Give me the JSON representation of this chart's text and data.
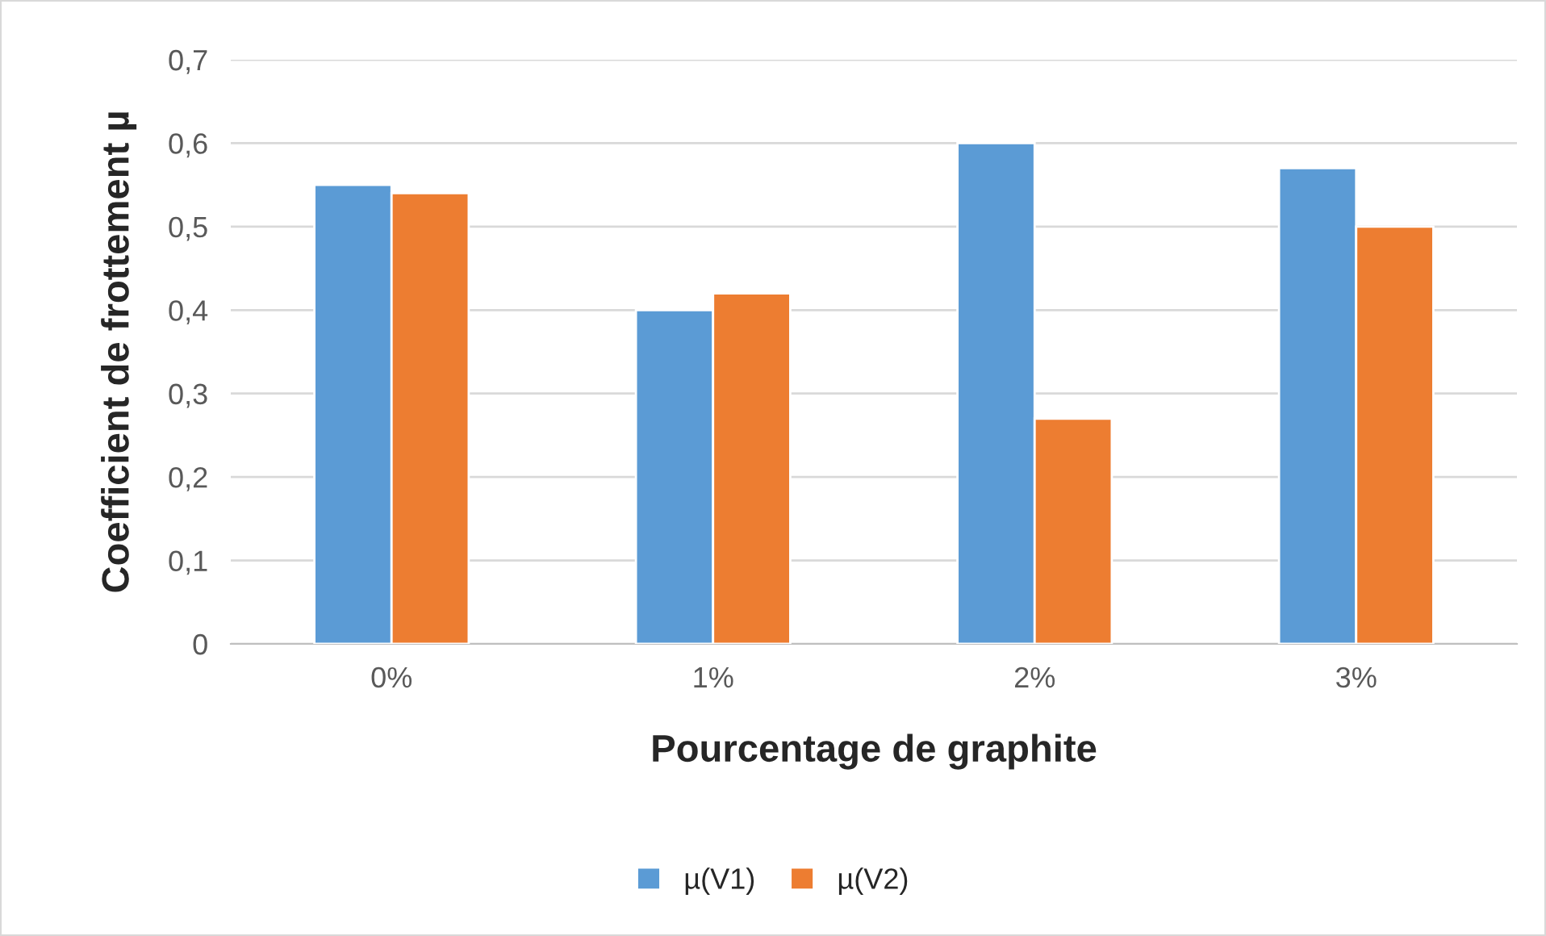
{
  "chart_data": {
    "type": "bar",
    "xlabel": "Pourcentage de graphite",
    "ylabel": "Coefficient de frottement µ",
    "categories": [
      "0%",
      "1%",
      "2%",
      "3%"
    ],
    "series": [
      {
        "name": "µ(V1)",
        "color": "#5b9bd5",
        "values": [
          0.55,
          0.4,
          0.6,
          0.57
        ]
      },
      {
        "name": "µ(V2)",
        "color": "#ed7d31",
        "values": [
          0.54,
          0.42,
          0.27,
          0.5
        ]
      }
    ],
    "ylim": [
      0,
      0.7
    ],
    "yticks": [
      0,
      {
        "value": 0.1,
        "label": "0,1"
      },
      {
        "value": 0.2,
        "label": "0,2"
      },
      {
        "value": 0.3,
        "label": "0,3"
      },
      {
        "value": 0.4,
        "label": "0,4"
      },
      {
        "value": 0.5,
        "label": "0,5"
      },
      {
        "value": 0.6,
        "label": "0,6"
      },
      {
        "value": 0.7,
        "label": "0,7"
      }
    ],
    "grid": "y",
    "legend": "bottom"
  }
}
